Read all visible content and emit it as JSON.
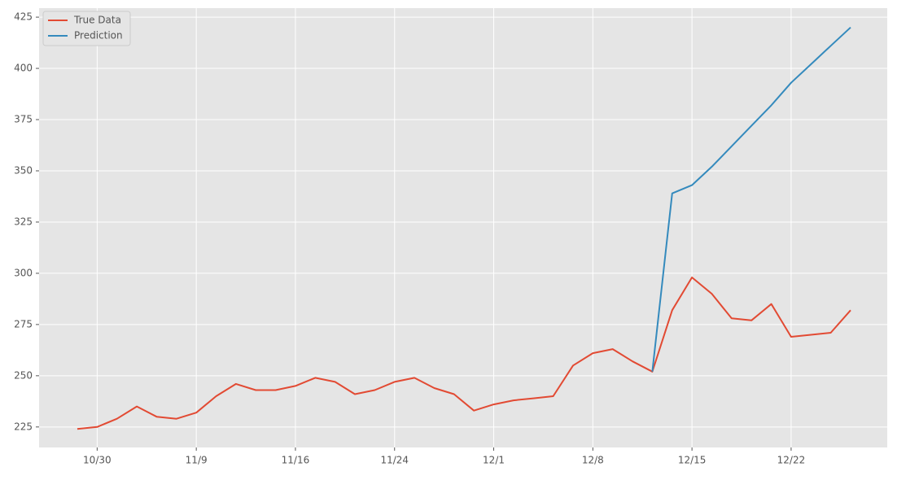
{
  "chart_data": {
    "type": "line",
    "categories": [
      null,
      "10/30",
      null,
      null,
      null,
      null,
      "11/9",
      null,
      null,
      null,
      null,
      "11/16",
      null,
      null,
      null,
      null,
      "11/24",
      null,
      null,
      null,
      null,
      "12/1",
      null,
      null,
      null,
      null,
      "12/8",
      null,
      null,
      null,
      null,
      "12/15",
      null,
      null,
      null,
      null,
      "12/22",
      null,
      null,
      null
    ],
    "series": [
      {
        "name": "True Data",
        "color": "#E24A33",
        "values": [
          224,
          225,
          229,
          235,
          230,
          229,
          232,
          240,
          246,
          243,
          243,
          245,
          249,
          247,
          241,
          243,
          247,
          249,
          244,
          241,
          233,
          236,
          238,
          239,
          240,
          255,
          261,
          263,
          257,
          252,
          282,
          298,
          290,
          278,
          277,
          285,
          269,
          270,
          271,
          282
        ]
      },
      {
        "name": "Prediction",
        "color": "#348ABD",
        "values": [
          null,
          null,
          null,
          null,
          null,
          null,
          null,
          null,
          null,
          null,
          null,
          null,
          null,
          null,
          null,
          null,
          null,
          null,
          null,
          null,
          null,
          null,
          null,
          null,
          null,
          null,
          null,
          null,
          null,
          252,
          339,
          343,
          352,
          362,
          372,
          382,
          393,
          402,
          411,
          420
        ]
      }
    ],
    "ylim": [
      215,
      429.4
    ],
    "yticks": [
      225,
      250,
      275,
      300,
      325,
      350,
      375,
      400,
      425
    ],
    "grid": true,
    "legend": "upper left"
  }
}
